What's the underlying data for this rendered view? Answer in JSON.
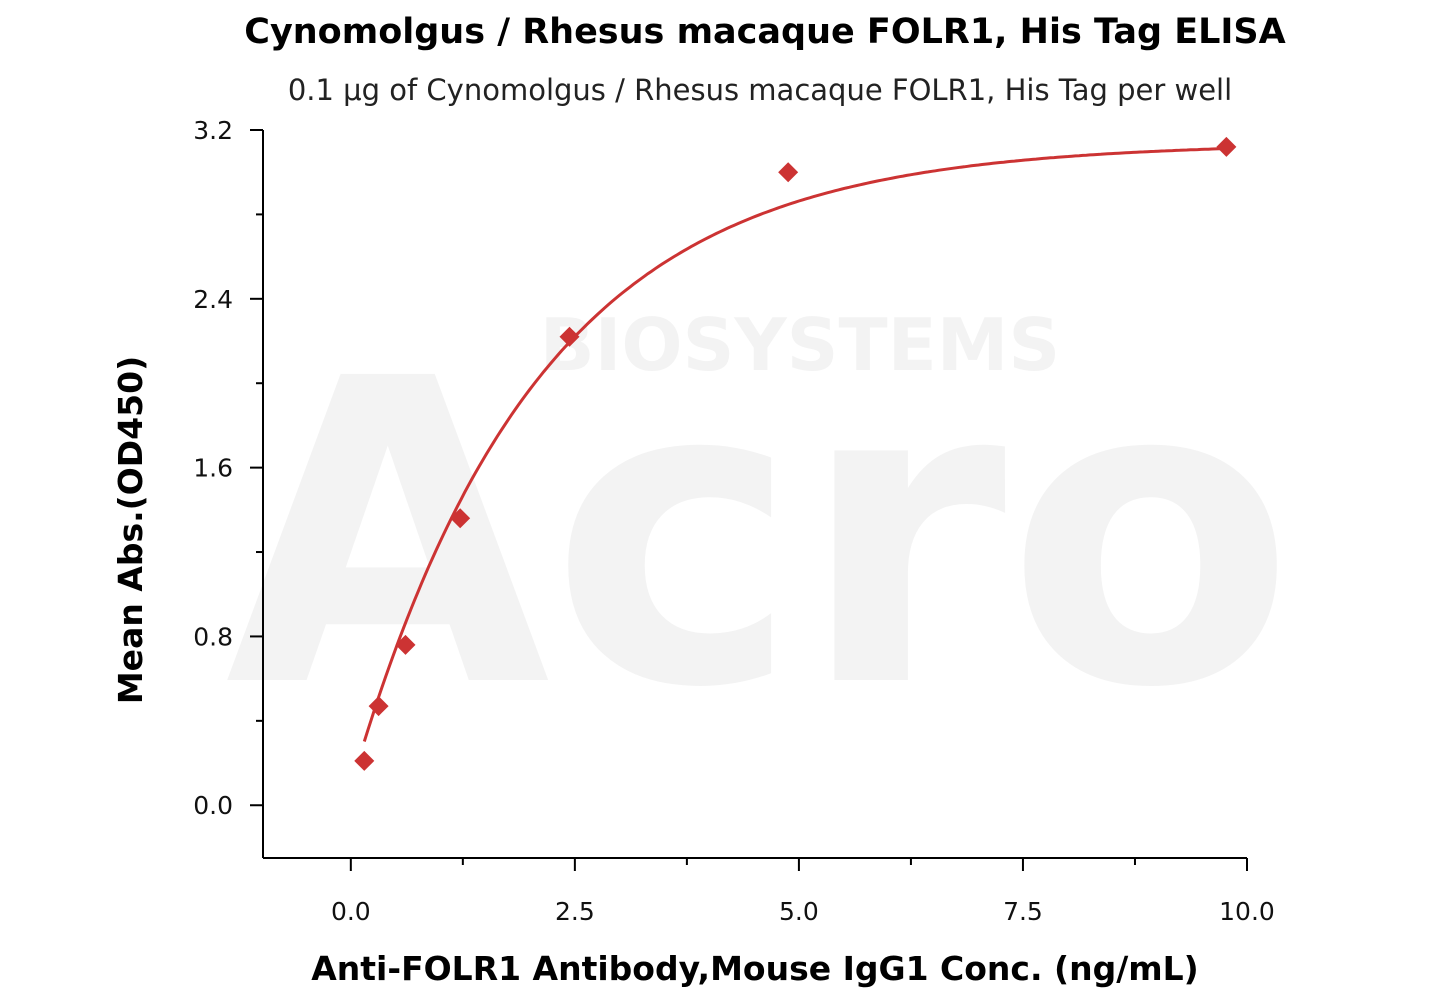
{
  "chart_data": {
    "type": "scatter",
    "title": "Cynomolgus / Rhesus macaque FOLR1, His Tag ELISA",
    "subtitle": "0.1 μg of Cynomolgus / Rhesus macaque FOLR1, His Tag per well",
    "xlabel": "Anti-FOLR1 Antibody,Mouse IgG1 Conc. (ng/mL)",
    "ylabel": "Mean Abs.(OD450)",
    "xlim": [
      -0.98,
      10.0
    ],
    "ylim": [
      -0.25,
      3.2
    ],
    "x_ticks": [
      0.0,
      2.5,
      5.0,
      7.5,
      10.0
    ],
    "x_tick_labels": [
      "0.0",
      "2.5",
      "5.0",
      "7.5",
      "10.0"
    ],
    "y_ticks": [
      0.0,
      0.8,
      1.6,
      2.4,
      3.2
    ],
    "y_tick_labels": [
      "0.0",
      "0.8",
      "1.6",
      "2.4",
      "3.2"
    ],
    "grid": false,
    "legend": "none",
    "series": [
      {
        "marker": "diamond",
        "color": "#cc3333",
        "x": [
          0.15,
          0.31,
          0.61,
          1.22,
          2.44,
          4.88,
          9.77
        ],
        "y": [
          0.21,
          0.47,
          0.76,
          1.36,
          2.22,
          3.0,
          3.12
        ]
      }
    ],
    "fit_curve": {
      "color": "#cc3333",
      "model": "Bmax*(1-exp(-k*x))+c",
      "params": {
        "Bmax": 3.05,
        "k": 0.48,
        "c": 0.09
      }
    },
    "watermark": {
      "logo_text": "Acro",
      "company_text": "BIOSYSTEMS"
    }
  }
}
